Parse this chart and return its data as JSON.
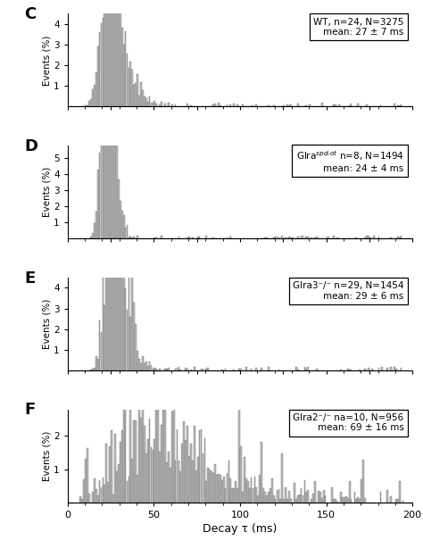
{
  "panels": [
    {
      "label": "C",
      "mean_ms": 27,
      "std_ms": 7,
      "N": 3275,
      "ylim": [
        0,
        4.5
      ],
      "yticks": [
        1,
        2,
        3,
        4
      ],
      "dist_type": "lognormal_spiky",
      "seed": 1001
    },
    {
      "label": "D",
      "mean_ms": 24,
      "std_ms": 4,
      "N": 1494,
      "ylim": [
        0,
        5.8
      ],
      "yticks": [
        1,
        2,
        3,
        4,
        5
      ],
      "dist_type": "lognormal_spiky",
      "seed": 2002
    },
    {
      "label": "E",
      "mean_ms": 29,
      "std_ms": 6,
      "N": 1454,
      "ylim": [
        0,
        4.5
      ],
      "yticks": [
        1,
        2,
        3,
        4
      ],
      "dist_type": "lognormal_spiky",
      "seed": 3003
    },
    {
      "label": "F",
      "mean_ms": 69,
      "std_ms": 16,
      "N": 956,
      "ylim": [
        0,
        2.8
      ],
      "yticks": [
        1,
        2
      ],
      "dist_type": "broad_spiky",
      "seed": 4004
    }
  ],
  "annotations": [
    {
      "line1": "WT, n=24, N=3275",
      "line2": "mean: 27 ± 7 ms"
    },
    {
      "line1": "Glra n=8, N=1494",
      "line2": "mean: 24 ± 4 ms"
    },
    {
      "line1": "Glra3⁻/⁻ n=29, N=1454",
      "line2": "mean: 29 ± 6 ms"
    },
    {
      "line1": "Glra2⁻/⁻ na=10, N=956",
      "line2": "mean: 69 ± 16 ms"
    }
  ],
  "xlim": [
    0,
    200
  ],
  "xticks": [
    0,
    50,
    100,
    150,
    200
  ],
  "xticklabels": [
    "0",
    "50",
    "100",
    "150",
    "200"
  ],
  "xlabel": "Decay τ (ms)",
  "ylabel": "Events (%)",
  "bar_color": "#bebebe",
  "bar_edgecolor": "#555555",
  "background_color": "#ffffff",
  "bin_width": 1
}
